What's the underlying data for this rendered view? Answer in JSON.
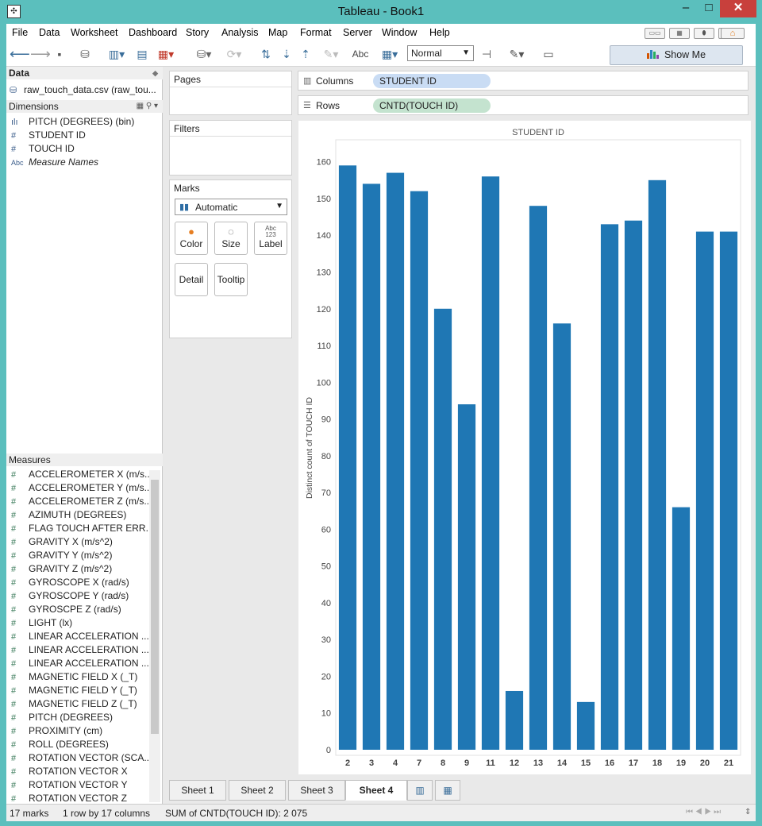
{
  "window": {
    "title": "Tableau - Book1"
  },
  "menu": [
    "File",
    "Data",
    "Worksheet",
    "Dashboard",
    "Story",
    "Analysis",
    "Map",
    "Format",
    "Server",
    "Window",
    "Help"
  ],
  "toolbar": {
    "fit": "Normal",
    "labels_btn": "Abc",
    "show_me": "Show Me"
  },
  "data_pane": {
    "header": "Data",
    "datasource": "raw_touch_data.csv (raw_tou...",
    "dimensions_header": "Dimensions",
    "dimensions": [
      {
        "icon": "bin-icon",
        "label": "PITCH (DEGREES) (bin)"
      },
      {
        "icon": "number-icon",
        "label": "STUDENT ID"
      },
      {
        "icon": "number-icon",
        "label": "TOUCH ID"
      },
      {
        "icon": "text-icon",
        "label": "Measure Names"
      }
    ],
    "measures_header": "Measures",
    "measures": [
      "ACCELEROMETER X (m/s...",
      "ACCELEROMETER Y (m/s...",
      "ACCELEROMETER Z (m/s...",
      "AZIMUTH (DEGREES)",
      "FLAG TOUCH AFTER ERR...",
      "GRAVITY X (m/s^2)",
      "GRAVITY Y (m/s^2)",
      "GRAVITY Z (m/s^2)",
      "GYROSCOPE X (rad/s)",
      "GYROSCOPE Y (rad/s)",
      "GYROSCPE Z (rad/s)",
      "LIGHT (lx)",
      "LINEAR ACCELERATION ...",
      "LINEAR ACCELERATION ...",
      "LINEAR ACCELERATION ...",
      "MAGNETIC FIELD X (_T)",
      "MAGNETIC FIELD Y (_T)",
      "MAGNETIC FIELD Z (_T)",
      "PITCH (DEGREES)",
      "PROXIMITY (cm)",
      "ROLL (DEGREES)",
      "ROTATION VECTOR (SCA...",
      "ROTATION VECTOR X",
      "ROTATION VECTOR Y",
      "ROTATION VECTOR Z"
    ]
  },
  "cards": {
    "pages": "Pages",
    "filters": "Filters",
    "marks": "Marks",
    "mark_type": "Automatic",
    "buttons": {
      "color": "Color",
      "size": "Size",
      "label": "Label",
      "detail": "Detail",
      "tooltip": "Tooltip"
    },
    "label_glyph": "Abc\n123"
  },
  "shelves": {
    "columns_label": "Columns",
    "columns_pill": "STUDENT ID",
    "rows_label": "Rows",
    "rows_pill": "CNTD(TOUCH ID)"
  },
  "sheets": [
    "Sheet 1",
    "Sheet 2",
    "Sheet 3",
    "Sheet 4"
  ],
  "active_sheet": "Sheet 4",
  "status": {
    "marks": "17 marks",
    "shape": "1 row by 17 columns",
    "sum": "SUM of CNTD(TOUCH ID): 2 075"
  },
  "colors": {
    "bar": "#1f77b4",
    "columns_pill": "#c9dcf4",
    "rows_pill": "#c4e3cf"
  },
  "chart_data": {
    "type": "bar",
    "title": "STUDENT ID",
    "xlabel": "",
    "ylabel": "Distinct count of TOUCH ID",
    "categories": [
      "2",
      "3",
      "4",
      "7",
      "8",
      "9",
      "11",
      "12",
      "13",
      "14",
      "15",
      "16",
      "17",
      "18",
      "19",
      "20",
      "21"
    ],
    "values": [
      159,
      154,
      157,
      152,
      120,
      94,
      156,
      16,
      148,
      116,
      13,
      143,
      144,
      155,
      66,
      141,
      141
    ],
    "ylim": [
      0,
      170
    ],
    "yticks": [
      "0",
      "10",
      "20",
      "30",
      "40",
      "50",
      "60",
      "70",
      "80",
      "90",
      "100",
      "110",
      "120",
      "130",
      "140",
      "150",
      "160"
    ],
    "grid": false,
    "legend": "none"
  }
}
